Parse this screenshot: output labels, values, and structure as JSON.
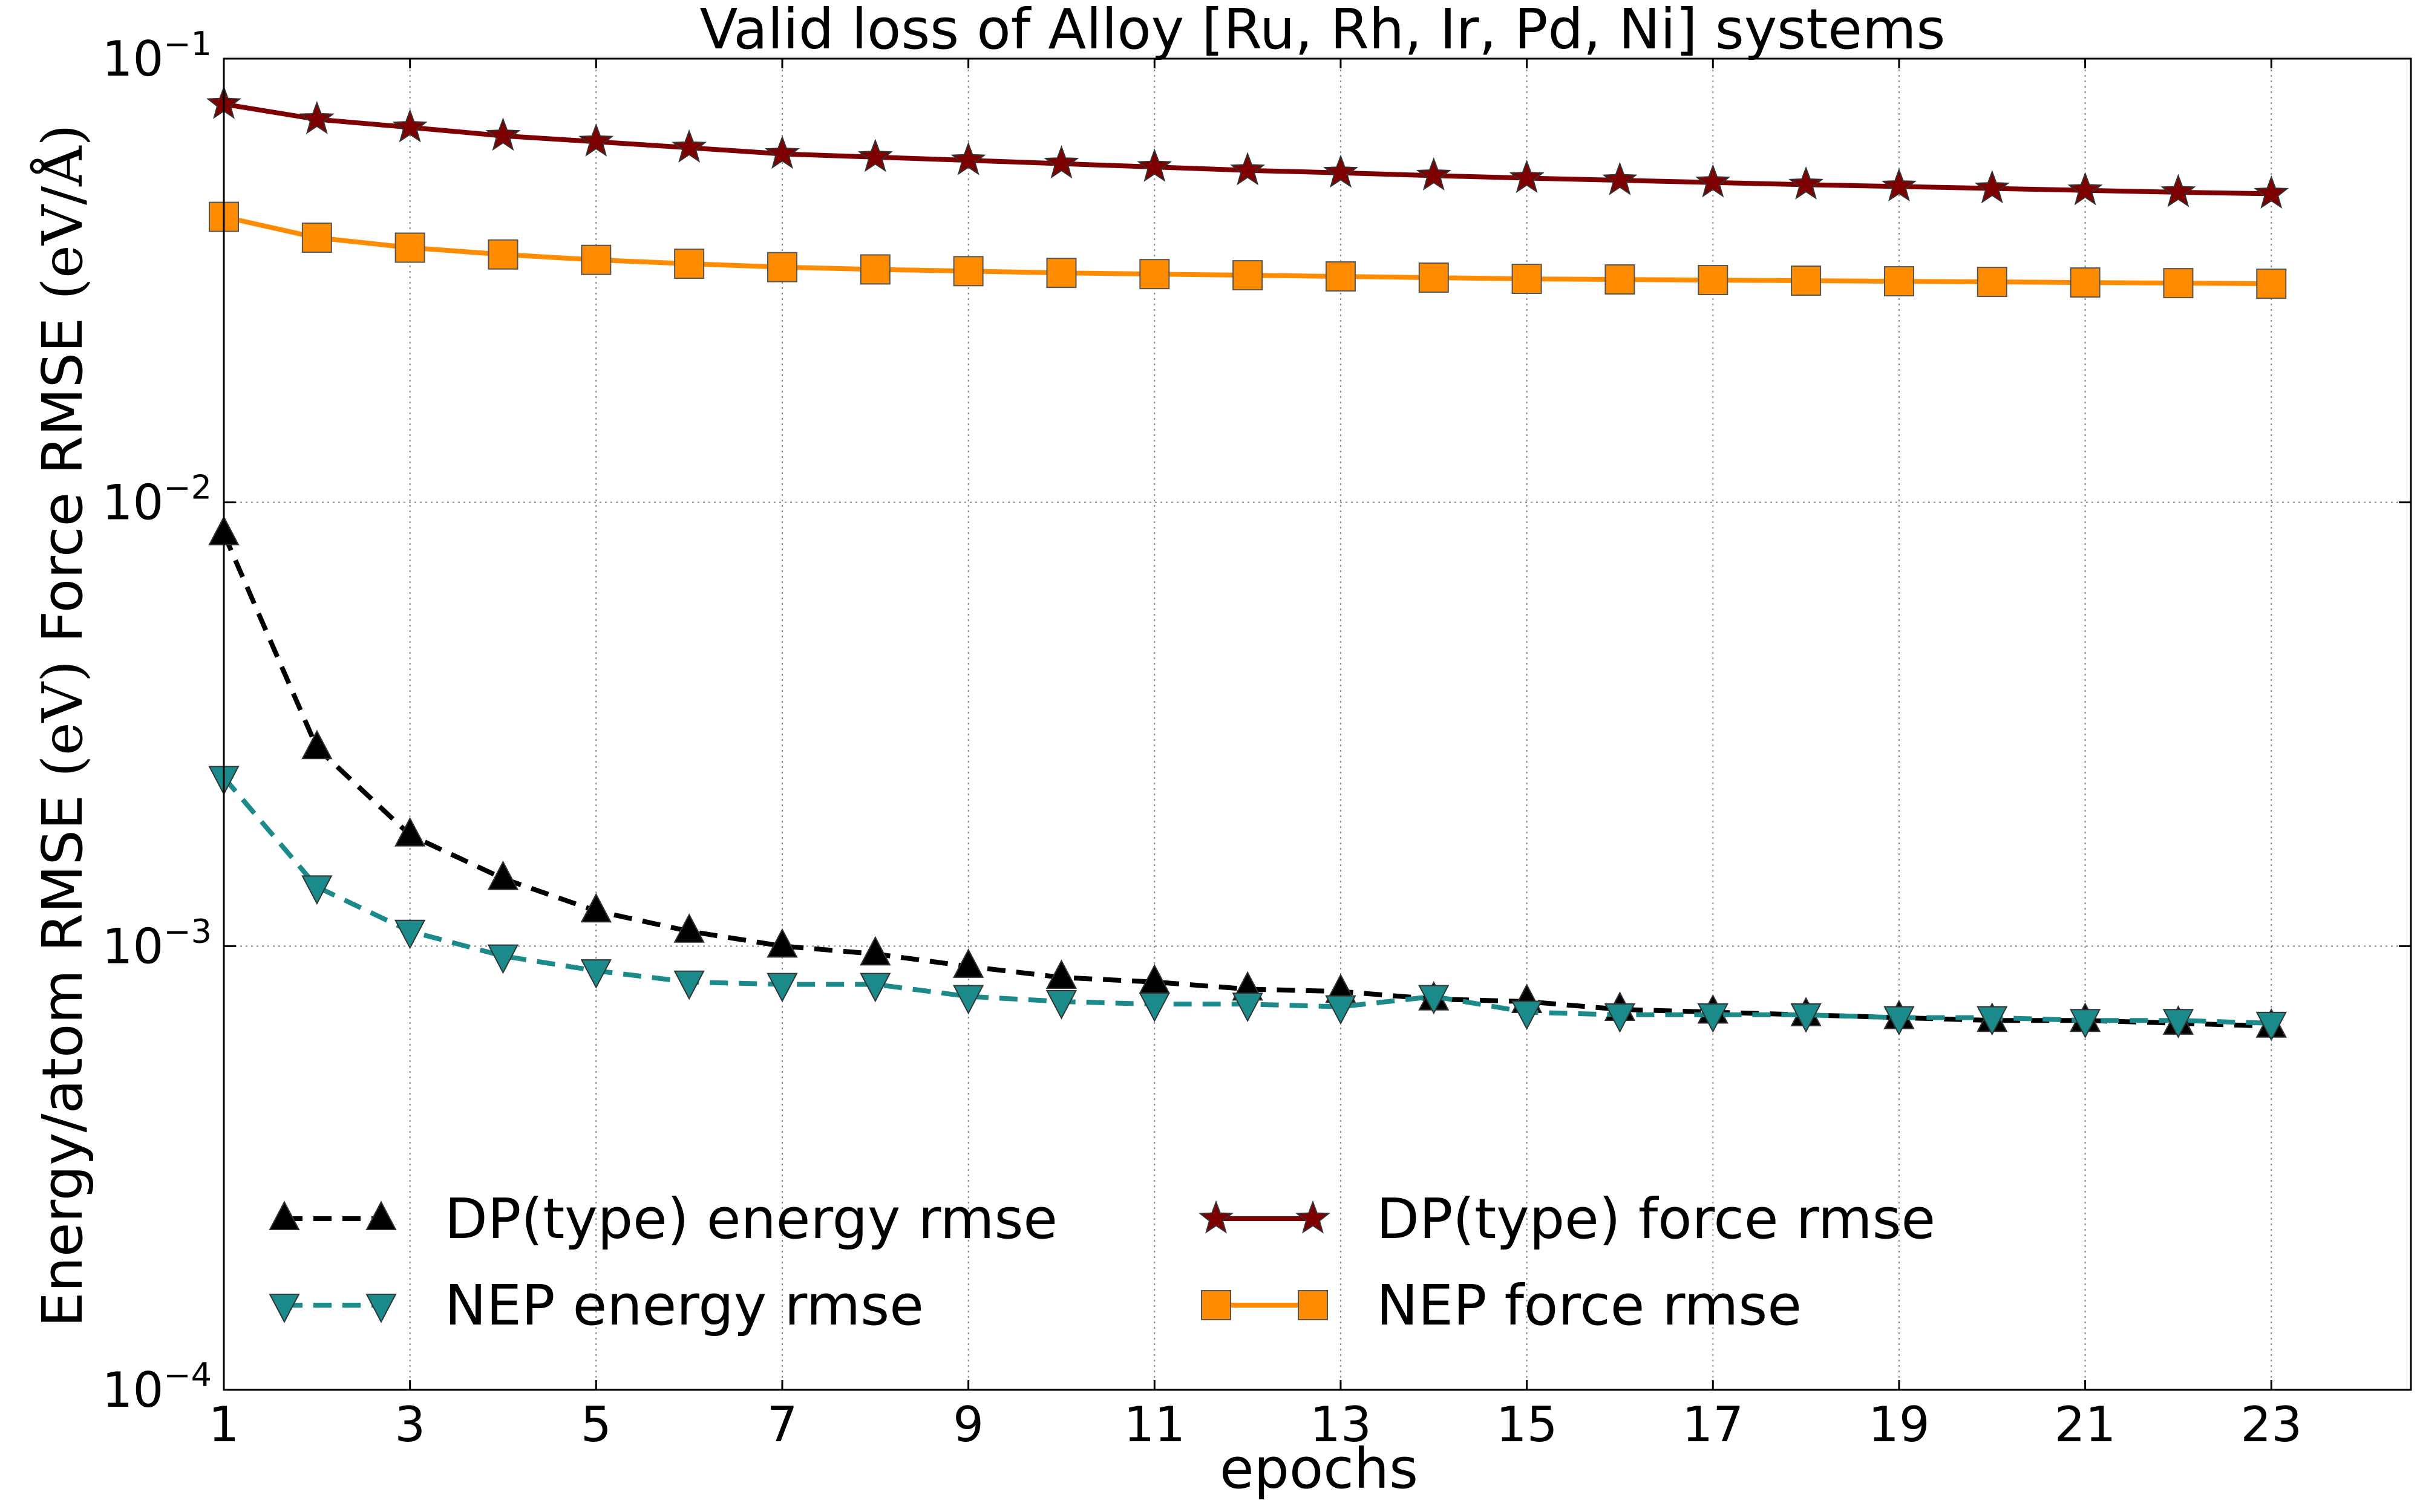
{
  "chart_data": {
    "type": "line",
    "title": "Valid loss of Alloy [Ru, Rh, Ir, Pd, Ni] systems",
    "xlabel": "epochs",
    "ylabel_prefix": "Energy/atom RMSE ",
    "ylabel_unit1": "(eV)",
    "ylabel_middle": "  Force RMSE ",
    "ylabel_unit2": "(eV/Å)",
    "y_scale": "log",
    "xlim": [
      1,
      24.5
    ],
    "ylim": [
      0.0001,
      0.1
    ],
    "grid": true,
    "legend_position": "lower-left",
    "x_ticks": [
      "1",
      "3",
      "5",
      "7",
      "9",
      "11",
      "13",
      "15",
      "17",
      "19",
      "21",
      "23"
    ],
    "y_ticks": [
      {
        "base": "10",
        "exp": "−4"
      },
      {
        "base": "10",
        "exp": "−3"
      },
      {
        "base": "10",
        "exp": "−2"
      },
      {
        "base": "10",
        "exp": "−1"
      }
    ],
    "x": [
      1,
      2,
      3,
      4,
      5,
      6,
      7,
      8,
      9,
      10,
      11,
      12,
      13,
      14,
      15,
      16,
      17,
      18,
      19,
      20,
      21,
      22,
      23
    ],
    "series": [
      {
        "name": "DP(type) energy rmse",
        "color": "#000000",
        "dash": "dashed",
        "marker": "triangle-up",
        "values": [
          0.0085,
          0.0028,
          0.00178,
          0.00142,
          0.0012,
          0.00108,
          0.001,
          0.00096,
          0.0009,
          0.00085,
          0.00083,
          0.0008,
          0.00079,
          0.00076,
          0.00075,
          0.00072,
          0.00071,
          0.0007,
          0.00069,
          0.00068,
          0.00068,
          0.00067,
          0.00066
        ]
      },
      {
        "name": "NEP energy rmse",
        "color": "#1a8a8a",
        "dash": "dashed",
        "marker": "triangle-down",
        "values": [
          0.0024,
          0.00136,
          0.00108,
          0.00095,
          0.00088,
          0.00083,
          0.00082,
          0.00082,
          0.00077,
          0.00075,
          0.00074,
          0.00074,
          0.00073,
          0.00077,
          0.00071,
          0.0007,
          0.0007,
          0.0007,
          0.00069,
          0.00069,
          0.00068,
          0.00068,
          0.00067
        ]
      },
      {
        "name": "DP(type) force rmse",
        "color": "#7f0000",
        "dash": "solid",
        "marker": "star",
        "values": [
          0.079,
          0.073,
          0.07,
          0.067,
          0.065,
          0.063,
          0.061,
          0.06,
          0.059,
          0.058,
          0.057,
          0.056,
          0.0553,
          0.0545,
          0.0538,
          0.0532,
          0.0526,
          0.052,
          0.0515,
          0.051,
          0.0505,
          0.05,
          0.0496
        ]
      },
      {
        "name": "NEP force rmse",
        "color": "#ff8c00",
        "dash": "solid",
        "marker": "square",
        "values": [
          0.044,
          0.0395,
          0.0375,
          0.0362,
          0.0352,
          0.0345,
          0.0339,
          0.0335,
          0.0332,
          0.0329,
          0.0327,
          0.0325,
          0.0323,
          0.0321,
          0.0319,
          0.0318,
          0.0317,
          0.0316,
          0.0315,
          0.0314,
          0.0313,
          0.0312,
          0.0311
        ]
      }
    ]
  }
}
